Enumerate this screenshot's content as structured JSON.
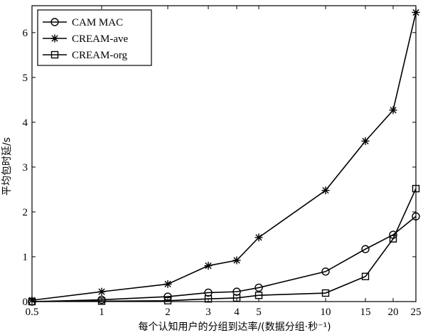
{
  "chart_data": {
    "type": "line",
    "x": [
      "0.5",
      "1",
      "2",
      "3",
      "4",
      "5",
      "10",
      "15",
      "20",
      "25"
    ],
    "xlabel": "每个认知用户的分组到达率/(数据分组·秒⁻¹)",
    "ylabel": "平均包时延/s",
    "ylim": [
      0,
      6.6
    ],
    "yticks": [
      "0",
      "1",
      "2",
      "3",
      "4",
      "5",
      "6"
    ],
    "grid": false,
    "legend_position": "top-left",
    "series": [
      {
        "name": "CAM MAC",
        "marker": "circle",
        "values": [
          0.0,
          0.04,
          0.11,
          0.2,
          0.22,
          0.31,
          0.67,
          1.17,
          1.49,
          1.9
        ]
      },
      {
        "name": "CREAM-ave",
        "marker": "star",
        "values": [
          0.03,
          0.22,
          0.39,
          0.8,
          0.92,
          1.43,
          2.48,
          3.58,
          4.27,
          6.45
        ]
      },
      {
        "name": "CREAM-org",
        "marker": "square",
        "values": [
          0.0,
          0.01,
          0.02,
          0.06,
          0.08,
          0.14,
          0.19,
          0.56,
          1.4,
          2.52
        ]
      }
    ]
  }
}
